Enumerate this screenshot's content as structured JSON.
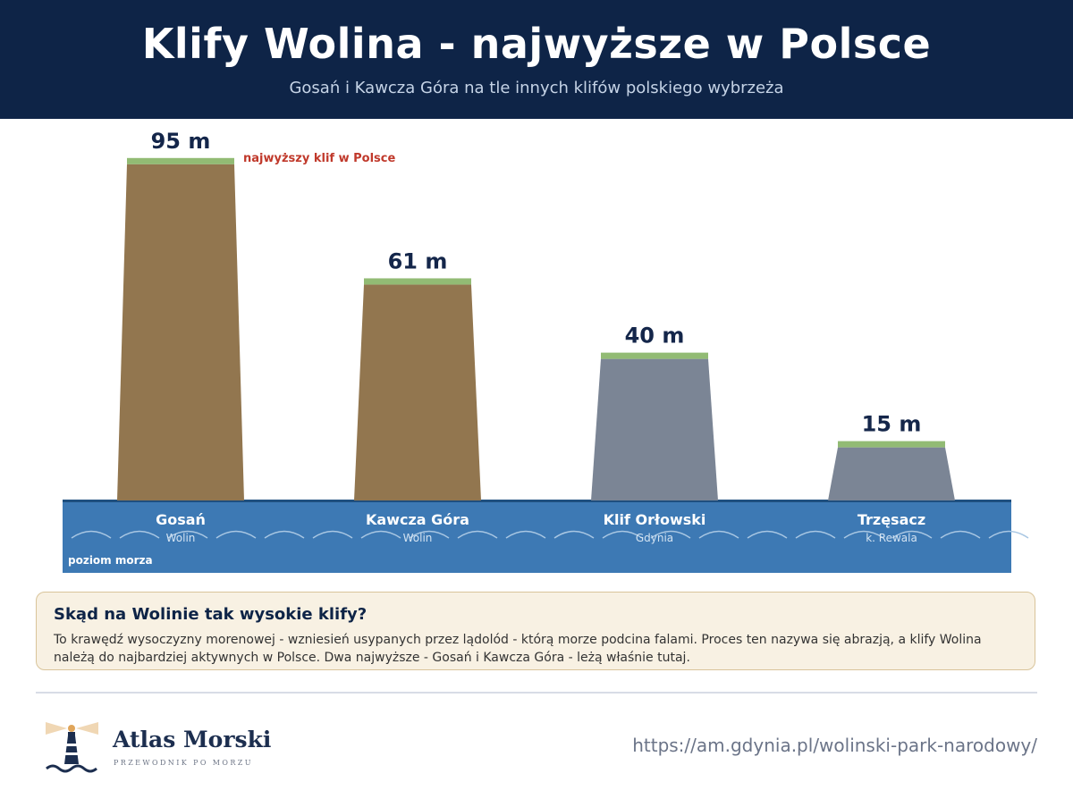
{
  "header": {
    "title": "Klify Wolina - najwyższe w Polsce",
    "subtitle": "Gosań i Kawcza Góra na tle innych klifów polskiego wybrzeża"
  },
  "chart_data": {
    "type": "bar",
    "title": "Klify Wolina - najwyższe w Polsce",
    "subtitle": "Gosań i Kawcza Góra na tle innych klifów polskiego wybrzeża",
    "categories": [
      "Gosań",
      "Kawcza Góra",
      "Klif Orłowski",
      "Trzęsacz"
    ],
    "locations": [
      "Wolin",
      "Wolin",
      "Gdynia",
      "k. Rewala"
    ],
    "values": [
      95,
      61,
      40,
      15
    ],
    "value_labels": [
      "95 m",
      "61 m",
      "40 m",
      "15 m"
    ],
    "unit": "m",
    "ylim": [
      0,
      95
    ],
    "annotation": {
      "category": "Gosań",
      "text": "najwyższy klif w Polsce",
      "color": "#c0392b"
    },
    "baseline_label": "poziom morza",
    "colors": {
      "wolin": "#92764f",
      "other": "#7b8595",
      "grass": "#92bb74",
      "sea": "#3d79b4",
      "sea_line": "#1f4f7f",
      "wave": "#a9c7e3",
      "value_text": "#14264a"
    },
    "bar_colors": [
      "wolin",
      "wolin",
      "other",
      "other"
    ],
    "grid": false
  },
  "info": {
    "title": "Skąd na Wolinie tak wysokie klify?",
    "text": "To krawędź wysoczyzny morenowej - wzniesień usypanych przez lądolód - którą morze podcina falami. Proces ten nazywa się abrazją, a klify Wolina należą do najbardziej aktywnych w Polsce. Dwa najwyższe - Gosań i Kawcza Góra - leżą właśnie tutaj."
  },
  "footer": {
    "logo_name": "Atlas Morski",
    "logo_tagline": "PRZEWODNIK PO MORZU",
    "logo_icon": "lighthouse-icon",
    "url": "https://am.gdynia.pl/wolinski-park-narodowy/"
  }
}
